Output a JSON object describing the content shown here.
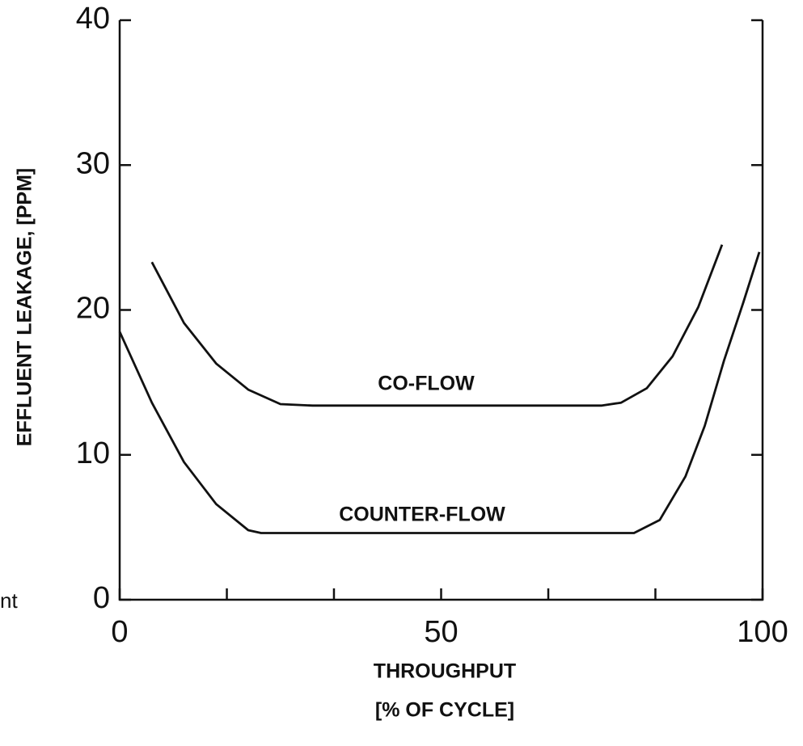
{
  "chart_data": {
    "type": "line",
    "xlabel": [
      "THROUGHPUT",
      "[% OF CYCLE]"
    ],
    "ylabel": "EFFLUENT LEAKAGE, [PPM]",
    "xlim": [
      0,
      100
    ],
    "ylim": [
      0,
      40
    ],
    "xticks": [
      0,
      50,
      100
    ],
    "xminorticks": [
      16.67,
      33.33,
      66.67,
      83.33
    ],
    "yticks": [
      0,
      10,
      20,
      30,
      40
    ],
    "fragment": "nt",
    "series": [
      {
        "name": "CO-FLOW",
        "color": "#111111",
        "x": [
          5,
          10,
          15,
          20,
          25,
          30,
          40,
          50,
          60,
          70,
          75,
          78,
          82,
          86,
          90,
          93.7
        ],
        "values": [
          23.3,
          19.1,
          16.3,
          14.5,
          13.5,
          13.4,
          13.4,
          13.4,
          13.4,
          13.4,
          13.4,
          13.6,
          14.6,
          16.8,
          20.2,
          24.5
        ]
      },
      {
        "name": "COUNTER-FLOW",
        "color": "#111111",
        "x": [
          0,
          5,
          10,
          15,
          20,
          22,
          30,
          40,
          50,
          60,
          70,
          80,
          84,
          88,
          91,
          94,
          97,
          99.5
        ],
        "values": [
          18.5,
          13.6,
          9.5,
          6.6,
          4.8,
          4.6,
          4.6,
          4.6,
          4.6,
          4.6,
          4.6,
          4.6,
          5.5,
          8.5,
          12,
          16.5,
          20.5,
          24
        ]
      }
    ]
  }
}
